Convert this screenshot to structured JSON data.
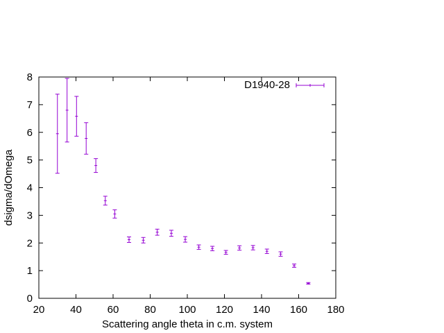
{
  "chart_data": {
    "type": "scatter",
    "title": "",
    "xlabel": "Scattering angle theta in c.m. system",
    "ylabel": "dsigma/dOmega",
    "xlim": [
      20,
      180
    ],
    "ylim": [
      0,
      8
    ],
    "xticks": [
      20,
      40,
      60,
      80,
      100,
      120,
      140,
      160,
      180
    ],
    "yticks": [
      0,
      1,
      2,
      3,
      4,
      5,
      6,
      7,
      8
    ],
    "grid": false,
    "legend_position": "top-right",
    "series_color": "#9400d3",
    "series": [
      {
        "name": "D1940-28",
        "style": "y-error-bars",
        "points": [
          {
            "x": 30.0,
            "y": 5.95,
            "err": 1.43
          },
          {
            "x": 35.2,
            "y": 6.8,
            "err": 1.15
          },
          {
            "x": 40.3,
            "y": 6.58,
            "err": 0.72
          },
          {
            "x": 45.5,
            "y": 5.78,
            "err": 0.57
          },
          {
            "x": 50.7,
            "y": 4.8,
            "err": 0.25
          },
          {
            "x": 55.8,
            "y": 3.53,
            "err": 0.16
          },
          {
            "x": 60.9,
            "y": 3.05,
            "err": 0.15
          },
          {
            "x": 68.6,
            "y": 2.12,
            "err": 0.1
          },
          {
            "x": 76.3,
            "y": 2.1,
            "err": 0.1
          },
          {
            "x": 83.8,
            "y": 2.39,
            "err": 0.11
          },
          {
            "x": 91.4,
            "y": 2.35,
            "err": 0.11
          },
          {
            "x": 98.9,
            "y": 2.13,
            "err": 0.1
          },
          {
            "x": 106.2,
            "y": 1.85,
            "err": 0.08
          },
          {
            "x": 113.5,
            "y": 1.8,
            "err": 0.08
          },
          {
            "x": 120.8,
            "y": 1.66,
            "err": 0.07
          },
          {
            "x": 128.1,
            "y": 1.82,
            "err": 0.08
          },
          {
            "x": 135.4,
            "y": 1.83,
            "err": 0.08
          },
          {
            "x": 142.9,
            "y": 1.7,
            "err": 0.08
          },
          {
            "x": 150.3,
            "y": 1.6,
            "err": 0.08
          },
          {
            "x": 157.6,
            "y": 1.18,
            "err": 0.06
          },
          {
            "x": 165.2,
            "y": 0.54,
            "err": 0.03
          }
        ]
      }
    ]
  }
}
